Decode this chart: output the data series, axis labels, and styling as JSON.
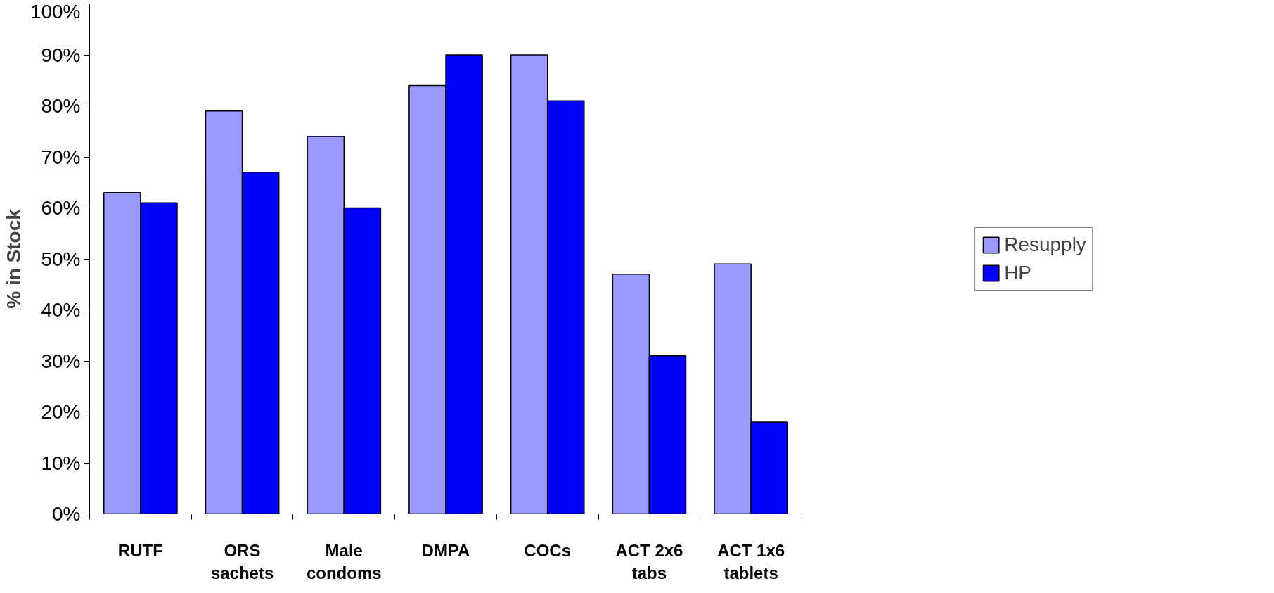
{
  "chart_data": {
    "type": "bar",
    "ylabel": "% in Stock",
    "categories": [
      "RUTF",
      "ORS\nsachets",
      "Male\ncondoms",
      "DMPA",
      "COCs",
      "ACT 2x6\ntabs",
      "ACT 1x6\ntablets"
    ],
    "series": [
      {
        "name": "Resupply",
        "color": "#9999ff",
        "values": [
          63,
          79,
          74,
          84,
          90,
          47,
          49
        ]
      },
      {
        "name": "HP",
        "color": "#0000ff",
        "values": [
          61,
          67,
          60,
          90,
          81,
          31,
          18
        ]
      }
    ],
    "ylim": [
      0,
      100
    ],
    "yticks": [
      {
        "value": 0,
        "label": "0%"
      },
      {
        "value": 10,
        "label": "10%"
      },
      {
        "value": 20,
        "label": "20%"
      },
      {
        "value": 30,
        "label": "30%"
      },
      {
        "value": 40,
        "label": "40%"
      },
      {
        "value": 50,
        "label": "50%"
      },
      {
        "value": 60,
        "label": "60%"
      },
      {
        "value": 70,
        "label": "70%"
      },
      {
        "value": 80,
        "label": "80%"
      },
      {
        "value": 90,
        "label": "90%"
      },
      {
        "value": 100,
        "label": "100%"
      }
    ],
    "grid": false,
    "legend": "right"
  }
}
